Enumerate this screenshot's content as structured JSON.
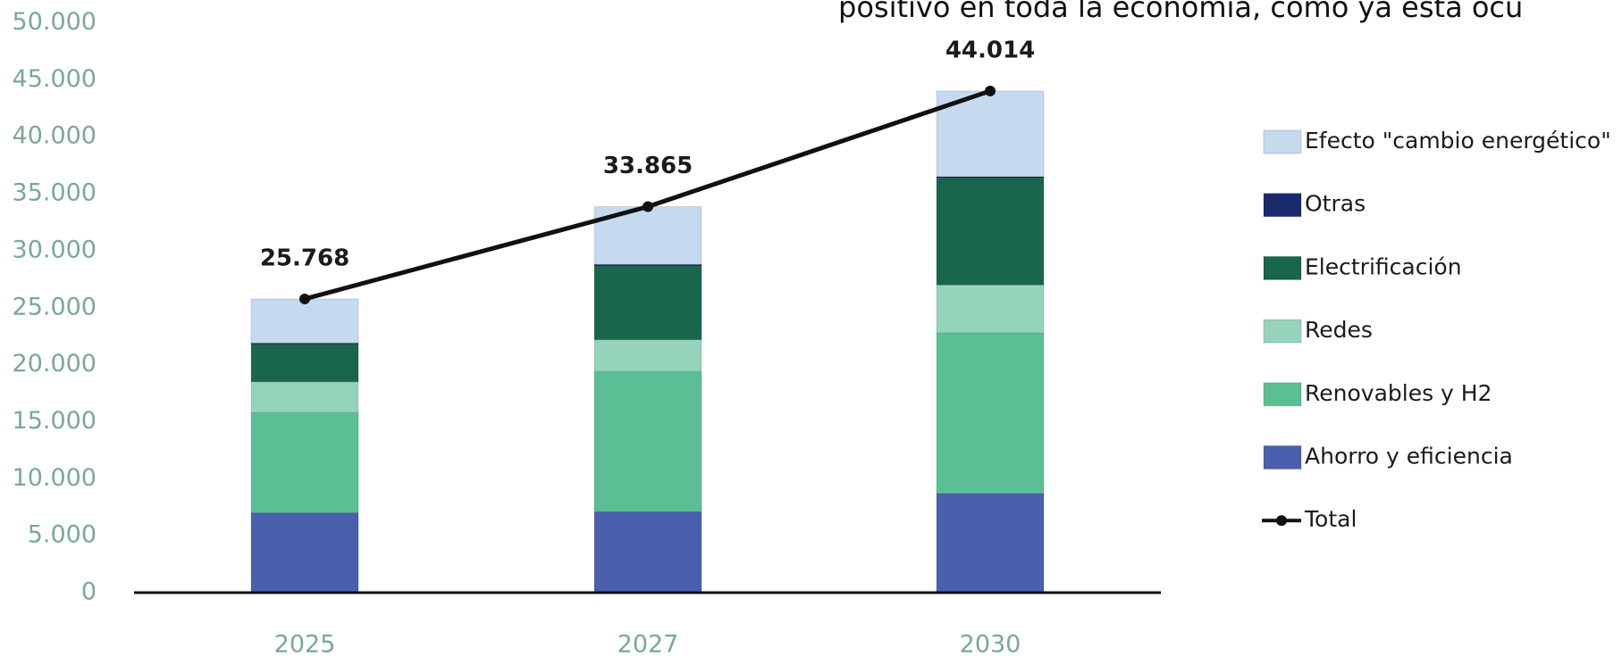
{
  "chart_data": {
    "type": "bar",
    "title": "positivo en toda la economía, como ya está ocu",
    "categories": [
      "2025",
      "2027",
      "2030"
    ],
    "series": [
      {
        "name": "Ahorro y eficiencia",
        "color": "#4a5fae",
        "values": [
          7000,
          7100,
          8700
        ]
      },
      {
        "name": "Renovables y H2",
        "color": "#5bbf96",
        "values": [
          8800,
          12300,
          14100
        ]
      },
      {
        "name": "Redes",
        "color": "#95d3bb",
        "values": [
          2700,
          2800,
          4200
        ]
      },
      {
        "name": "Electrificación",
        "color": "#17664d",
        "values": [
          3300,
          6500,
          9400
        ]
      },
      {
        "name": "Otras",
        "color": "#1a2a6c",
        "values": [
          100,
          100,
          100
        ]
      },
      {
        "name": "Efecto \"cambio energético\"",
        "color": "#c5daee",
        "values": [
          3868,
          5065,
          7514
        ]
      },
      {
        "name": "Total",
        "color": "#111111",
        "type": "line",
        "values": [
          25768,
          33865,
          44014
        ],
        "value_labels": [
          "25.768",
          "33.865",
          "44.014"
        ]
      }
    ],
    "ylim": [
      0,
      50000
    ],
    "yticks": [
      0,
      {
        "value": 5000,
        "label": "5.000"
      },
      {
        "value": 10000,
        "label": "10.000"
      },
      {
        "value": 15000,
        "label": "15.000"
      },
      {
        "value": 20000,
        "label": "20.000"
      },
      {
        "value": 25000,
        "label": "25.000"
      },
      {
        "value": 30000,
        "label": "30.000"
      },
      {
        "value": 35000,
        "label": "35.000"
      },
      {
        "value": 40000,
        "label": "40.000"
      },
      {
        "value": 45000,
        "label": "45.000"
      },
      {
        "value": 50000,
        "label": "50.000"
      }
    ],
    "grid": false,
    "legend": "right"
  }
}
